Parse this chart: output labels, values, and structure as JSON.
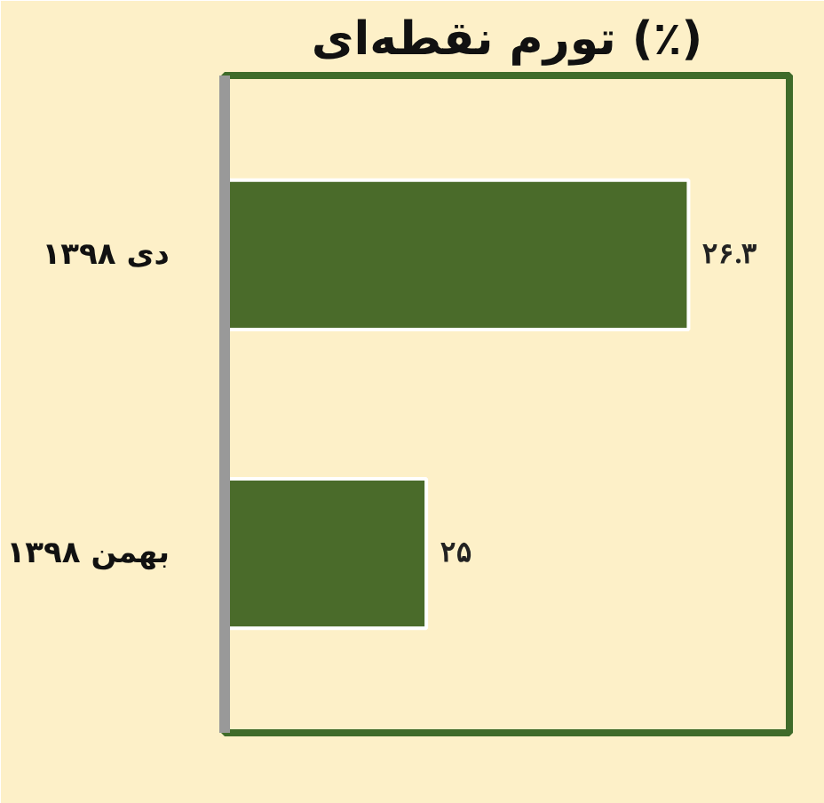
{
  "chart_data": {
    "type": "bar",
    "orientation": "horizontal",
    "title": "تورم نقطه‌ای (٪)",
    "categories": [
      "دی ۱۳۹۸",
      "بهمن ۱۳۹۸"
    ],
    "values": [
      26.3,
      25
    ],
    "color": "#4a6b2a",
    "value_labels": [
      "۲۶.۳",
      "۲۵"
    ],
    "xlim": [
      24,
      26.8
    ],
    "tick_labels": "y"
  }
}
